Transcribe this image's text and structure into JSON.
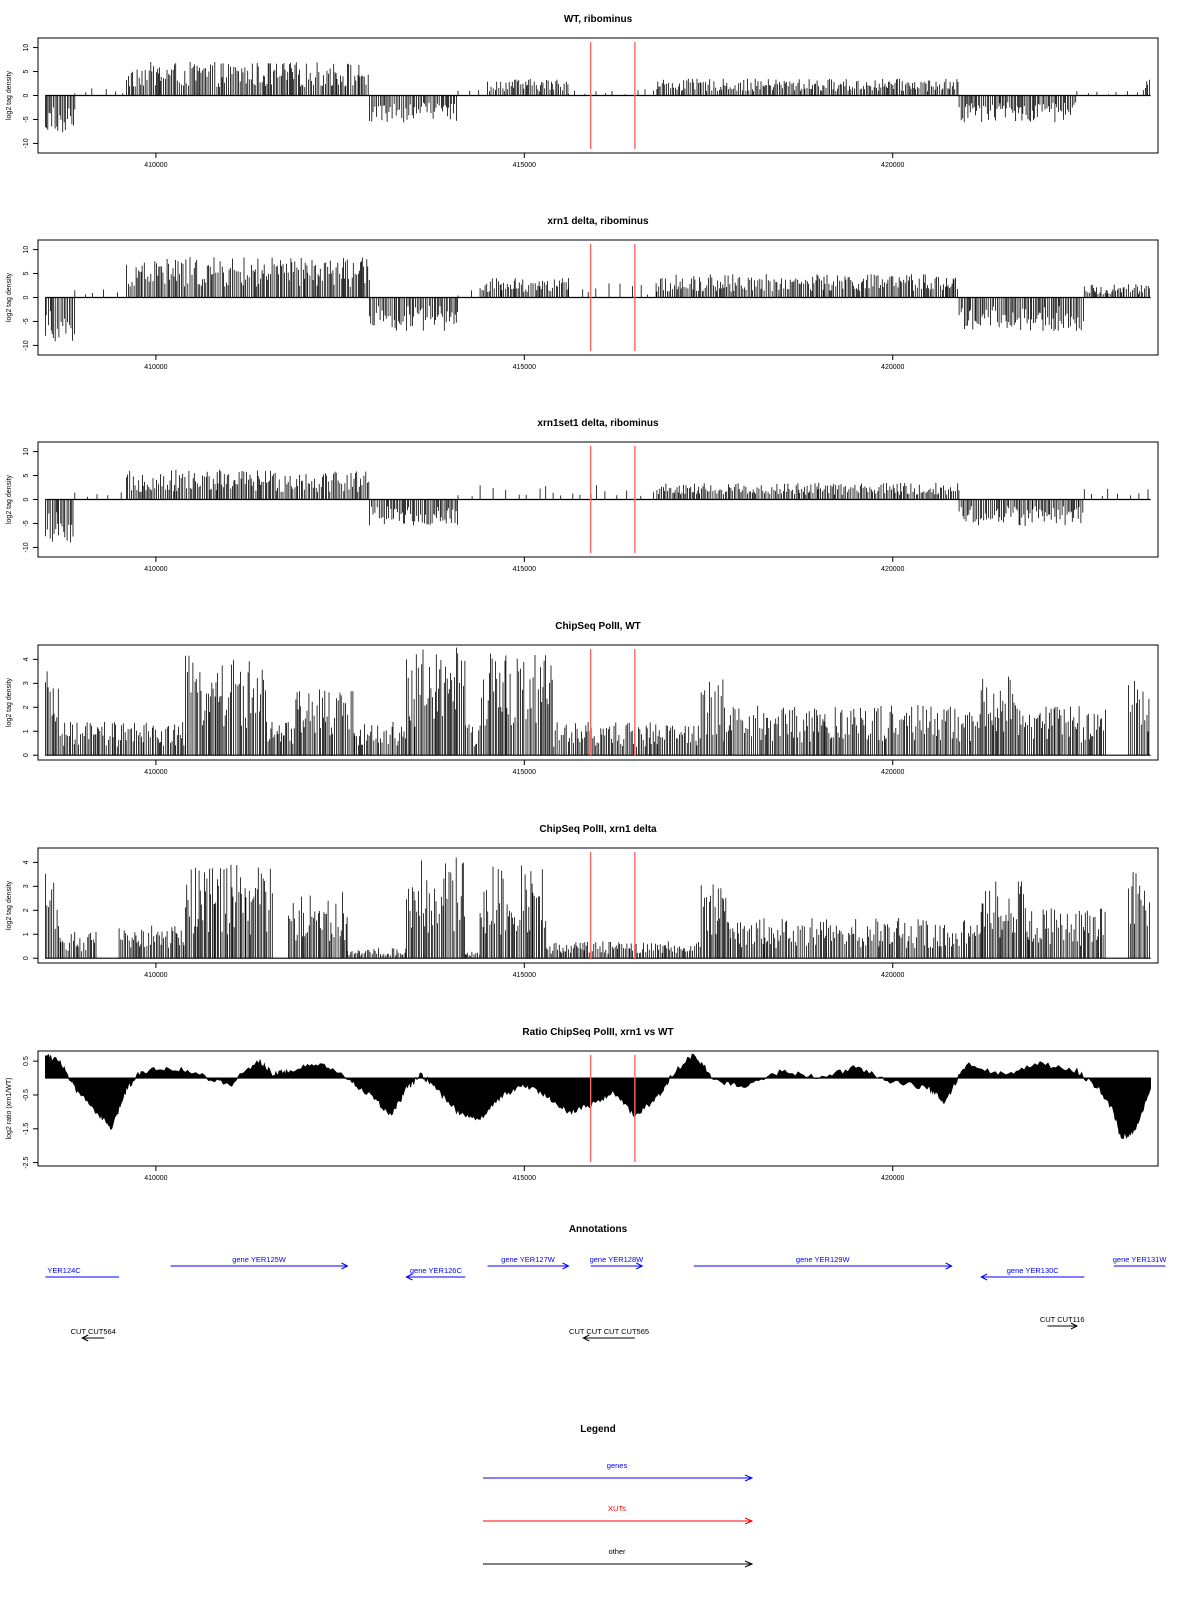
{
  "chart_data": [
    {
      "type": "bar",
      "title": "WT, ribominus",
      "xlabel": "",
      "ylabel": "log2 tag density",
      "xlim": [
        408400,
        423600
      ],
      "ylim": [
        -12,
        12
      ],
      "yticks": [
        -10,
        -5,
        0,
        5,
        10
      ],
      "xticks": [
        410000,
        415000,
        420000
      ],
      "markers": [
        415900,
        416500
      ],
      "segments": [
        {
          "x0": 408500,
          "x1": 408900,
          "value": -6,
          "sign": "neg"
        },
        {
          "x0": 408900,
          "x1": 409600,
          "value": 1,
          "sign": "pos",
          "sparse": true
        },
        {
          "x0": 409600,
          "x1": 412900,
          "value": 5,
          "sign": "pos"
        },
        {
          "x0": 412900,
          "x1": 414100,
          "value": -4,
          "sign": "neg"
        },
        {
          "x0": 414100,
          "x1": 414500,
          "value": 1,
          "sign": "pos",
          "sparse": true
        },
        {
          "x0": 414500,
          "x1": 415600,
          "value": 2.5,
          "sign": "pos"
        },
        {
          "x0": 415600,
          "x1": 416800,
          "value": 1,
          "sign": "pos",
          "sparse": true
        },
        {
          "x0": 416800,
          "x1": 420900,
          "value": 2.5,
          "sign": "pos"
        },
        {
          "x0": 420900,
          "x1": 422500,
          "value": -4,
          "sign": "neg"
        },
        {
          "x0": 422500,
          "x1": 423400,
          "value": 0.8,
          "sign": "pos",
          "sparse": true
        },
        {
          "x0": 423400,
          "x1": 423500,
          "value": 2.5,
          "sign": "pos"
        }
      ]
    },
    {
      "type": "bar",
      "title": "xrn1 delta, ribominus",
      "xlabel": "",
      "ylabel": "log2 tag density",
      "xlim": [
        408400,
        423600
      ],
      "ylim": [
        -12,
        12
      ],
      "yticks": [
        -10,
        -5,
        0,
        5,
        10
      ],
      "xticks": [
        410000,
        415000,
        420000
      ],
      "markers": [
        415900,
        416500
      ],
      "segments": [
        {
          "x0": 408500,
          "x1": 408900,
          "value": -7,
          "sign": "neg"
        },
        {
          "x0": 408900,
          "x1": 409600,
          "value": 1.2,
          "sign": "pos",
          "sparse": true
        },
        {
          "x0": 409600,
          "x1": 412900,
          "value": 6,
          "sign": "pos"
        },
        {
          "x0": 412900,
          "x1": 414100,
          "value": -5,
          "sign": "neg"
        },
        {
          "x0": 414100,
          "x1": 414400,
          "value": 1,
          "sign": "pos",
          "sparse": true
        },
        {
          "x0": 414400,
          "x1": 415600,
          "value": 3,
          "sign": "pos"
        },
        {
          "x0": 415600,
          "x1": 416800,
          "value": 2,
          "sign": "pos",
          "sparse": true
        },
        {
          "x0": 416800,
          "x1": 420900,
          "value": 3.5,
          "sign": "pos"
        },
        {
          "x0": 420900,
          "x1": 422600,
          "value": -5,
          "sign": "neg"
        },
        {
          "x0": 422600,
          "x1": 423500,
          "value": 2,
          "sign": "pos"
        }
      ]
    },
    {
      "type": "bar",
      "title": "xrn1set1 delta, ribominus",
      "xlabel": "",
      "ylabel": "log2 tag density",
      "xlim": [
        408400,
        423600
      ],
      "ylim": [
        -12,
        12
      ],
      "yticks": [
        -10,
        -5,
        0,
        5,
        10
      ],
      "xticks": [
        410000,
        415000,
        420000
      ],
      "markers": [
        415900,
        416500
      ],
      "segments": [
        {
          "x0": 408500,
          "x1": 408900,
          "value": -6.5,
          "sign": "neg"
        },
        {
          "x0": 408900,
          "x1": 409600,
          "value": 1,
          "sign": "pos",
          "sparse": true
        },
        {
          "x0": 409600,
          "x1": 412900,
          "value": 4.5,
          "sign": "pos"
        },
        {
          "x0": 412900,
          "x1": 414100,
          "value": -4,
          "sign": "neg"
        },
        {
          "x0": 414100,
          "x1": 416800,
          "value": 2,
          "sign": "pos",
          "sparse": true
        },
        {
          "x0": 416800,
          "x1": 420900,
          "value": 2.5,
          "sign": "pos"
        },
        {
          "x0": 420900,
          "x1": 422600,
          "value": -4,
          "sign": "neg"
        },
        {
          "x0": 422600,
          "x1": 423500,
          "value": 1.5,
          "sign": "pos",
          "sparse": true
        }
      ]
    },
    {
      "type": "bar",
      "title": "ChipSeq PolII, WT",
      "xlabel": "",
      "ylabel": "log2 tag density",
      "xlim": [
        408400,
        423600
      ],
      "ylim": [
        -0.2,
        4.6
      ],
      "yticks": [
        0,
        1,
        2,
        3,
        4
      ],
      "xticks": [
        410000,
        415000,
        420000
      ],
      "markers": [
        415900,
        416500
      ],
      "segments": [
        {
          "x0": 408500,
          "x1": 408700,
          "value": 2.5
        },
        {
          "x0": 408700,
          "x1": 410400,
          "value": 1
        },
        {
          "x0": 410400,
          "x1": 411500,
          "value": 3
        },
        {
          "x0": 411500,
          "x1": 411900,
          "value": 1
        },
        {
          "x0": 411900,
          "x1": 412700,
          "value": 2
        },
        {
          "x0": 412700,
          "x1": 413400,
          "value": 1
        },
        {
          "x0": 413400,
          "x1": 414200,
          "value": 3.3
        },
        {
          "x0": 414200,
          "x1": 414400,
          "value": 1
        },
        {
          "x0": 414400,
          "x1": 415400,
          "value": 3.1
        },
        {
          "x0": 415400,
          "x1": 417400,
          "value": 1
        },
        {
          "x0": 417400,
          "x1": 417700,
          "value": 2.3
        },
        {
          "x0": 417700,
          "x1": 421200,
          "value": 1.5
        },
        {
          "x0": 421200,
          "x1": 421800,
          "value": 2.4
        },
        {
          "x0": 421800,
          "x1": 422900,
          "value": 1.5
        },
        {
          "x0": 422900,
          "x1": 423200,
          "value": 0
        },
        {
          "x0": 423200,
          "x1": 423500,
          "value": 2.3
        }
      ]
    },
    {
      "type": "bar",
      "title": "ChipSeq PolII, xrn1 delta",
      "xlabel": "",
      "ylabel": "log2 tag density",
      "xlim": [
        408400,
        423600
      ],
      "ylim": [
        -0.2,
        4.6
      ],
      "yticks": [
        0,
        1,
        2,
        3,
        4
      ],
      "xticks": [
        410000,
        415000,
        420000
      ],
      "markers": [
        415900,
        416500
      ],
      "segments": [
        {
          "x0": 408500,
          "x1": 408700,
          "value": 2.8
        },
        {
          "x0": 408700,
          "x1": 409200,
          "value": 0.8
        },
        {
          "x0": 409200,
          "x1": 409500,
          "value": 0
        },
        {
          "x0": 409500,
          "x1": 410400,
          "value": 1
        },
        {
          "x0": 410400,
          "x1": 411600,
          "value": 2.8
        },
        {
          "x0": 411600,
          "x1": 411800,
          "value": 0
        },
        {
          "x0": 411800,
          "x1": 412600,
          "value": 2
        },
        {
          "x0": 412600,
          "x1": 413400,
          "value": 0.3
        },
        {
          "x0": 413400,
          "x1": 414200,
          "value": 3
        },
        {
          "x0": 414200,
          "x1": 414400,
          "value": 0.2
        },
        {
          "x0": 414400,
          "x1": 415300,
          "value": 2.8
        },
        {
          "x0": 415300,
          "x1": 417400,
          "value": 0.5
        },
        {
          "x0": 417400,
          "x1": 417800,
          "value": 2.2
        },
        {
          "x0": 417800,
          "x1": 421200,
          "value": 1.2
        },
        {
          "x0": 421200,
          "x1": 421800,
          "value": 2.3
        },
        {
          "x0": 421800,
          "x1": 422900,
          "value": 1.5
        },
        {
          "x0": 422900,
          "x1": 423200,
          "value": 0
        },
        {
          "x0": 423200,
          "x1": 423500,
          "value": 2.6
        }
      ]
    },
    {
      "type": "area",
      "title": "Ratio ChipSeq PolII, xrn1 vs WT",
      "xlabel": "",
      "ylabel": "log2 ratio (xrn1/WT)",
      "xlim": [
        408400,
        423600
      ],
      "ylim": [
        -2.6,
        0.8
      ],
      "yticks": [
        -2.5,
        -1.5,
        -0.5,
        0.5
      ],
      "ytick_labels": [
        "-2.5",
        "-1.5",
        "-0.5",
        "0.5"
      ],
      "xticks": [
        410000,
        415000,
        420000
      ],
      "markers": [
        415900,
        416500
      ],
      "profile": {
        "x": [
          408500,
          408700,
          408900,
          409200,
          409400,
          409600,
          409800,
          410200,
          410600,
          411000,
          411400,
          411600,
          411800,
          412200,
          412600,
          412900,
          413200,
          413400,
          413600,
          413800,
          414100,
          414400,
          414700,
          415000,
          415300,
          415600,
          415900,
          416200,
          416500,
          416800,
          417000,
          417300,
          417600,
          418000,
          418500,
          419000,
          419500,
          420000,
          420500,
          420700,
          421000,
          421500,
          422000,
          422500,
          422800,
          423000,
          423100,
          423300,
          423500
        ],
        "y": [
          0.7,
          0.5,
          -0.3,
          -1.0,
          -1.5,
          -0.3,
          0.2,
          0.3,
          0.1,
          -0.2,
          0.5,
          0.1,
          0.2,
          0.4,
          0.0,
          -0.5,
          -1.1,
          -0.3,
          0.1,
          -0.3,
          -1.0,
          -1.2,
          -0.5,
          -0.2,
          -0.5,
          -1.0,
          -0.8,
          -0.4,
          -1.1,
          -0.6,
          0.1,
          0.7,
          -0.1,
          -0.2,
          0.2,
          0.0,
          0.3,
          -0.1,
          -0.3,
          -0.7,
          0.4,
          0.1,
          0.4,
          0.2,
          -0.3,
          -1.0,
          -1.8,
          -1.5,
          -0.3
        ]
      }
    },
    {
      "type": "annotation-track",
      "title": "Annotations",
      "xlim": [
        408400,
        423600
      ],
      "features": [
        {
          "label": "YER124C",
          "x0": 408500,
          "x1": 409500,
          "strand": "-",
          "kind": "gene",
          "row": 1,
          "arrow": false,
          "label_pos": "left"
        },
        {
          "label": "gene YER125W",
          "x0": 410200,
          "x1": 412600,
          "strand": "+",
          "kind": "gene",
          "row": 0,
          "arrow": true
        },
        {
          "label": "gene YER126C",
          "x0": 413400,
          "x1": 414200,
          "strand": "-",
          "kind": "gene",
          "row": 1,
          "arrow": true
        },
        {
          "label": "gene YER127W",
          "x0": 414500,
          "x1": 415600,
          "strand": "+",
          "kind": "gene",
          "row": 0,
          "arrow": true
        },
        {
          "label": "gene YER128W",
          "x0": 415900,
          "x1": 416600,
          "strand": "+",
          "kind": "gene",
          "row": 0,
          "arrow": true
        },
        {
          "label": "gene YER129W",
          "x0": 417300,
          "x1": 420800,
          "strand": "+",
          "kind": "gene",
          "row": 0,
          "arrow": true
        },
        {
          "label": "gene YER130C",
          "x0": 421200,
          "x1": 422600,
          "strand": "-",
          "kind": "gene",
          "row": 1,
          "arrow": true
        },
        {
          "label": "gene YER131W",
          "x0": 423000,
          "x1": 423700,
          "strand": "+",
          "kind": "gene",
          "row": 0,
          "arrow": false
        },
        {
          "label": "CUT CUT564",
          "x0": 409000,
          "x1": 409300,
          "strand": "-",
          "kind": "other",
          "row": 3,
          "arrow": true
        },
        {
          "label": "CUT CUT CUT CUT565",
          "x0": 415800,
          "x1": 416500,
          "strand": "-",
          "kind": "other",
          "row": 3,
          "arrow": true
        },
        {
          "label": "CUT CUT116",
          "x0": 422100,
          "x1": 422500,
          "strand": "+",
          "kind": "other",
          "row": 2,
          "arrow": true
        }
      ]
    }
  ],
  "legend": {
    "title": "Legend",
    "items": [
      {
        "label": "genes",
        "color": "#0000ff"
      },
      {
        "label": "XUTs",
        "color": "#ff0000"
      },
      {
        "label": "other",
        "color": "#000000"
      }
    ]
  },
  "colors": {
    "bars": "#000000",
    "marker": "#ff6666",
    "gene": "#0000ff",
    "other": "#000000",
    "axis": "#000000"
  }
}
